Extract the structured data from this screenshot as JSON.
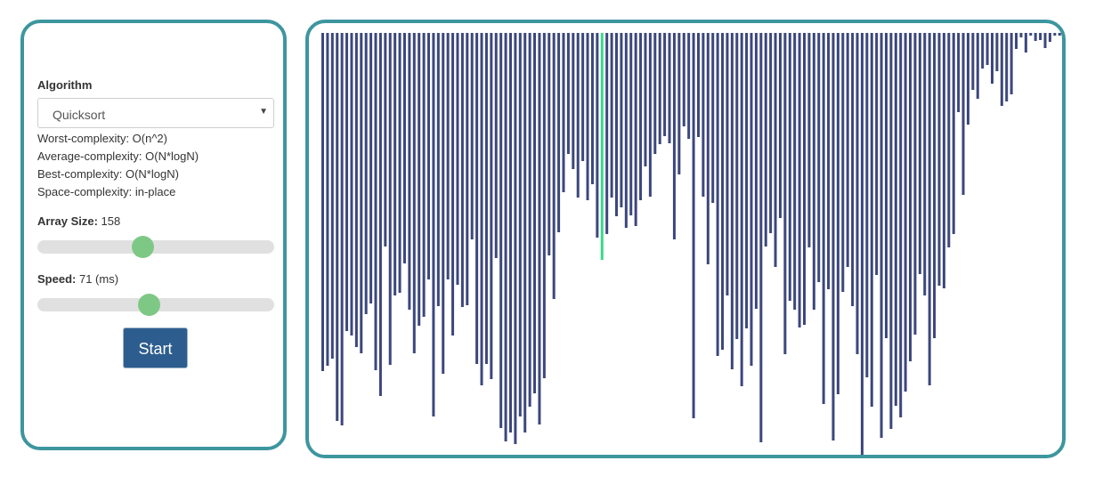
{
  "sidebar": {
    "algorithm_label": "Algorithm",
    "algorithm_selected": "Quicksort",
    "complexity": {
      "worst": "Worst-complexity: O(n^2)",
      "average": "Average-complexity: O(N*logN)",
      "best": "Best-complexity: O(N*logN)",
      "space": "Space-complexity: in-place"
    },
    "array_size_label": "Array Size:",
    "array_size_value": "158",
    "array_size_slider_fraction": 0.44,
    "speed_label": "Speed:",
    "speed_value": "71 (ms)",
    "speed_slider_fraction": 0.47,
    "start_label": "Start"
  },
  "visualizer": {
    "bar_color": "#3c477c",
    "highlight_color": "#39d98a",
    "highlight_index": 58,
    "bar_values": [
      380,
      374,
      366,
      436,
      441,
      335,
      340,
      353,
      360,
      316,
      304,
      379,
      408,
      240,
      373,
      295,
      292,
      259,
      311,
      360,
      329,
      319,
      277,
      431,
      307,
      383,
      277,
      340,
      283,
      308,
      306,
      232,
      372,
      396,
      372,
      389,
      253,
      444,
      459,
      449,
      462,
      431,
      449,
      420,
      405,
      440,
      388,
      250,
      299,
      224,
      179,
      136,
      153,
      185,
      144,
      188,
      170,
      230,
      255,
      226,
      185,
      206,
      196,
      219,
      205,
      217,
      188,
      150,
      184,
      136,
      125,
      116,
      124,
      232,
      159,
      105,
      119,
      433,
      117,
      184,
      260,
      191,
      363,
      356,
      295,
      378,
      344,
      397,
      332,
      374,
      310,
      460,
      240,
      225,
      263,
      208,
      361,
      301,
      311,
      331,
      328,
      241,
      311,
      280,
      417,
      288,
      458,
      406,
      291,
      263,
      307,
      361,
      476,
      387,
      420,
      272,
      455,
      343,
      445,
      419,
      432,
      403,
      369,
      339,
      271,
      295,
      396,
      343,
      284,
      287,
      241,
      226,
      89,
      182,
      103,
      64,
      74,
      40,
      36,
      57,
      43,
      82,
      77,
      69,
      18,
      5,
      22,
      3,
      9,
      8,
      17,
      10,
      3,
      3,
      12,
      8,
      21,
      80
    ]
  }
}
